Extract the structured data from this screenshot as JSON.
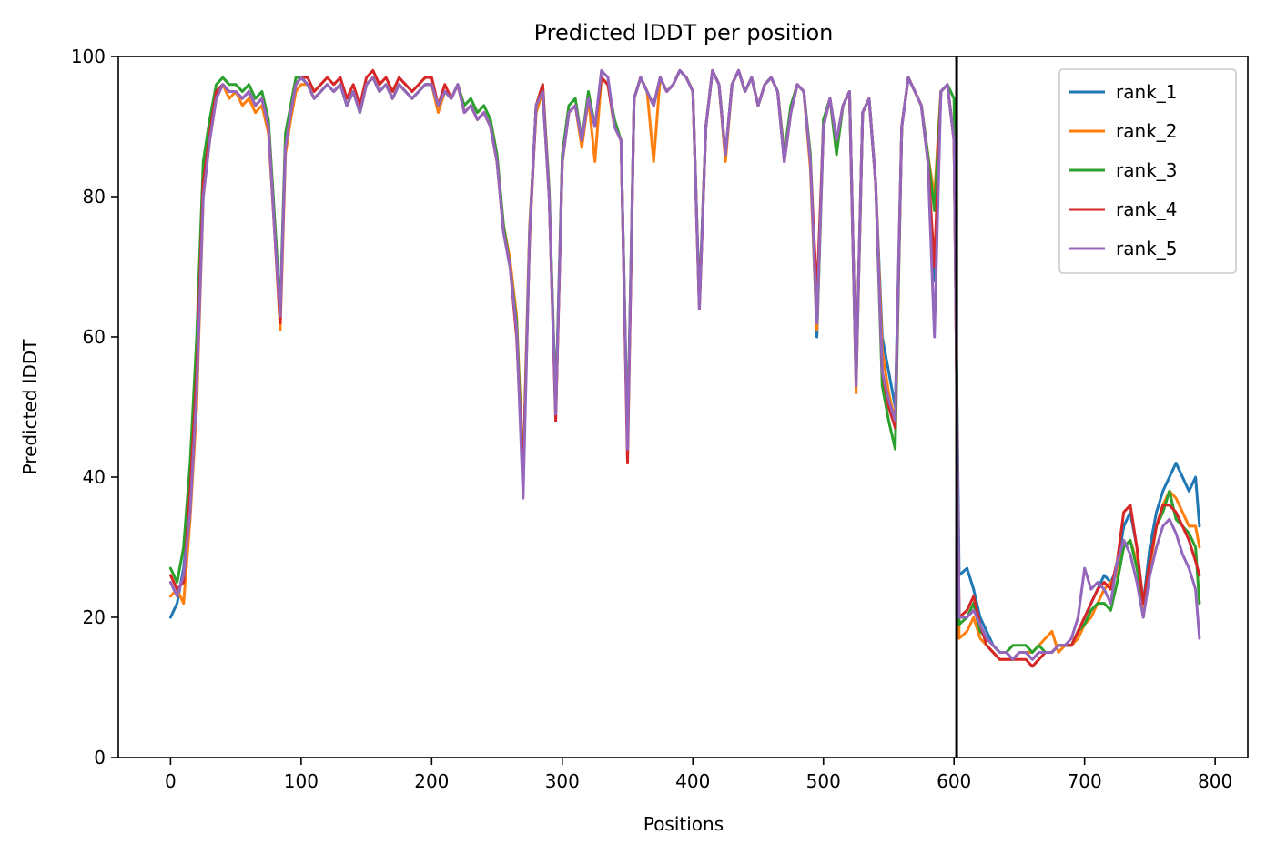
{
  "chart_data": {
    "type": "line",
    "title": "Predicted lDDT per position",
    "xlabel": "Positions",
    "ylabel": "Predicted lDDT",
    "xlim": [
      -40,
      825
    ],
    "ylim": [
      0,
      100
    ],
    "xticks": [
      0,
      100,
      200,
      300,
      400,
      500,
      600,
      700,
      800
    ],
    "yticks": [
      0,
      20,
      40,
      60,
      80,
      100
    ],
    "vline_x": 602,
    "legend_position": "top-right",
    "grid": false,
    "x": [
      0,
      5,
      10,
      15,
      20,
      25,
      30,
      35,
      40,
      45,
      50,
      55,
      60,
      65,
      70,
      75,
      80,
      84,
      88,
      92,
      96,
      100,
      105,
      110,
      115,
      120,
      125,
      130,
      135,
      140,
      145,
      150,
      155,
      160,
      165,
      170,
      175,
      180,
      185,
      190,
      195,
      200,
      205,
      210,
      215,
      220,
      225,
      230,
      235,
      240,
      245,
      250,
      255,
      260,
      265,
      270,
      275,
      280,
      285,
      290,
      295,
      300,
      305,
      310,
      315,
      320,
      325,
      330,
      335,
      340,
      345,
      350,
      355,
      360,
      365,
      370,
      375,
      380,
      385,
      390,
      395,
      400,
      405,
      410,
      415,
      420,
      425,
      430,
      435,
      440,
      445,
      450,
      455,
      460,
      465,
      470,
      475,
      480,
      485,
      490,
      495,
      500,
      505,
      510,
      515,
      520,
      525,
      530,
      535,
      540,
      545,
      550,
      555,
      560,
      565,
      570,
      575,
      580,
      585,
      590,
      595,
      600,
      604,
      610,
      615,
      620,
      625,
      630,
      635,
      640,
      645,
      650,
      655,
      660,
      665,
      670,
      675,
      680,
      685,
      690,
      695,
      700,
      705,
      710,
      715,
      720,
      725,
      730,
      735,
      740,
      745,
      750,
      755,
      760,
      765,
      770,
      775,
      780,
      785,
      788
    ],
    "series": [
      {
        "name": "rank_1",
        "color": "#1f77b4",
        "values": [
          20,
          22,
          27,
          36,
          55,
          82,
          90,
          95,
          96,
          95,
          95,
          94,
          95,
          93,
          94,
          90,
          75,
          64,
          88,
          92,
          96,
          97,
          96,
          94,
          95,
          96,
          95,
          96,
          93,
          95,
          92,
          96,
          97,
          95,
          96,
          94,
          96,
          95,
          94,
          95,
          96,
          96,
          93,
          95,
          94,
          96,
          92,
          93,
          91,
          92,
          90,
          85,
          75,
          70,
          62,
          40,
          75,
          93,
          95,
          80,
          50,
          85,
          92,
          93,
          88,
          94,
          90,
          97,
          96,
          90,
          88,
          45,
          94,
          97,
          95,
          93,
          97,
          95,
          96,
          98,
          97,
          95,
          65,
          90,
          98,
          96,
          86,
          96,
          98,
          95,
          97,
          93,
          96,
          97,
          95,
          85,
          92,
          96,
          95,
          85,
          60,
          90,
          94,
          88,
          93,
          95,
          53,
          92,
          94,
          82,
          60,
          55,
          50,
          90,
          97,
          95,
          93,
          85,
          68,
          95,
          96,
          88,
          26,
          27,
          24,
          20,
          18,
          16,
          15,
          15,
          14,
          15,
          15,
          14,
          15,
          15,
          15,
          16,
          16,
          16,
          18,
          20,
          22,
          24,
          26,
          25,
          27,
          33,
          35,
          30,
          22,
          30,
          35,
          38,
          40,
          42,
          40,
          38,
          40,
          33
        ]
      },
      {
        "name": "rank_2",
        "color": "#ff7f0e",
        "values": [
          23,
          24,
          22,
          34,
          50,
          80,
          88,
          94,
          96,
          94,
          95,
          93,
          94,
          92,
          93,
          89,
          74,
          61,
          86,
          91,
          95,
          96,
          96,
          94,
          95,
          96,
          95,
          96,
          93,
          95,
          92,
          96,
          97,
          95,
          96,
          94,
          96,
          95,
          94,
          95,
          96,
          96,
          92,
          95,
          94,
          96,
          92,
          93,
          91,
          92,
          90,
          85,
          76,
          71,
          63,
          41,
          76,
          92,
          95,
          80,
          49,
          85,
          92,
          93,
          87,
          94,
          85,
          97,
          96,
          90,
          88,
          44,
          94,
          97,
          95,
          85,
          97,
          95,
          96,
          98,
          97,
          95,
          64,
          90,
          98,
          96,
          85,
          96,
          98,
          95,
          97,
          93,
          96,
          97,
          95,
          86,
          92,
          96,
          95,
          84,
          61,
          90,
          94,
          87,
          93,
          95,
          52,
          92,
          94,
          82,
          58,
          52,
          48,
          90,
          97,
          95,
          93,
          86,
          80,
          95,
          96,
          88,
          17,
          18,
          20,
          17,
          16,
          15,
          14,
          14,
          14,
          15,
          15,
          15,
          16,
          17,
          18,
          15,
          16,
          16,
          17,
          19,
          20,
          22,
          24,
          25,
          26,
          30,
          31,
          28,
          20,
          27,
          33,
          36,
          38,
          37,
          35,
          33,
          33,
          30
        ]
      },
      {
        "name": "rank_3",
        "color": "#2ca02c",
        "values": [
          27,
          25,
          30,
          42,
          60,
          85,
          91,
          96,
          97,
          96,
          96,
          95,
          96,
          94,
          95,
          91,
          76,
          64,
          89,
          93,
          97,
          97,
          96,
          94,
          95,
          96,
          95,
          96,
          93,
          95,
          92,
          96,
          97,
          95,
          96,
          94,
          96,
          95,
          94,
          95,
          96,
          96,
          93,
          95,
          94,
          96,
          93,
          94,
          92,
          93,
          91,
          86,
          76,
          70,
          62,
          40,
          75,
          93,
          96,
          81,
          50,
          86,
          93,
          94,
          88,
          95,
          90,
          97,
          96,
          91,
          88,
          45,
          94,
          97,
          95,
          93,
          97,
          95,
          96,
          98,
          97,
          95,
          65,
          90,
          98,
          96,
          86,
          96,
          98,
          95,
          97,
          93,
          96,
          97,
          95,
          86,
          93,
          96,
          95,
          86,
          62,
          91,
          94,
          86,
          93,
          95,
          54,
          92,
          94,
          82,
          53,
          48,
          44,
          90,
          97,
          95,
          93,
          86,
          78,
          95,
          96,
          94,
          19,
          20,
          22,
          18,
          17,
          16,
          15,
          15,
          16,
          16,
          16,
          15,
          16,
          15,
          15,
          16,
          16,
          16,
          18,
          19,
          21,
          22,
          22,
          21,
          25,
          30,
          31,
          27,
          22,
          28,
          33,
          35,
          38,
          34,
          33,
          32,
          30,
          22
        ]
      },
      {
        "name": "rank_4",
        "color": "#d62728",
        "values": [
          26,
          24,
          25,
          38,
          55,
          82,
          89,
          95,
          96,
          95,
          95,
          94,
          95,
          93,
          94,
          90,
          74,
          62,
          87,
          92,
          96,
          97,
          97,
          95,
          96,
          97,
          96,
          97,
          94,
          96,
          93,
          97,
          98,
          96,
          97,
          95,
          97,
          96,
          95,
          96,
          97,
          97,
          93,
          96,
          94,
          96,
          92,
          93,
          91,
          92,
          90,
          85,
          75,
          70,
          60,
          40,
          74,
          93,
          96,
          80,
          48,
          85,
          92,
          93,
          88,
          94,
          90,
          97,
          96,
          90,
          88,
          42,
          94,
          97,
          95,
          93,
          97,
          95,
          96,
          98,
          97,
          95,
          64,
          90,
          98,
          96,
          86,
          96,
          98,
          95,
          97,
          93,
          96,
          97,
          95,
          85,
          92,
          96,
          95,
          85,
          66,
          90,
          94,
          88,
          93,
          95,
          54,
          92,
          94,
          82,
          55,
          50,
          47,
          90,
          97,
          95,
          93,
          85,
          70,
          95,
          96,
          88,
          20,
          21,
          23,
          19,
          16,
          15,
          14,
          14,
          14,
          14,
          14,
          13,
          14,
          15,
          15,
          16,
          16,
          16,
          18,
          20,
          22,
          24,
          25,
          24,
          28,
          35,
          36,
          30,
          22,
          28,
          33,
          36,
          36,
          35,
          33,
          31,
          28,
          26
        ]
      },
      {
        "name": "rank_5",
        "color": "#9467bd",
        "values": [
          25,
          23,
          26,
          35,
          52,
          80,
          88,
          94,
          96,
          95,
          95,
          94,
          95,
          93,
          94,
          90,
          74,
          63,
          87,
          92,
          96,
          97,
          96,
          94,
          95,
          96,
          95,
          96,
          93,
          95,
          92,
          96,
          97,
          95,
          96,
          94,
          96,
          95,
          94,
          95,
          96,
          96,
          93,
          95,
          94,
          96,
          92,
          93,
          91,
          92,
          90,
          85,
          75,
          70,
          61,
          37,
          75,
          93,
          95,
          80,
          49,
          85,
          92,
          93,
          88,
          94,
          90,
          98,
          97,
          90,
          88,
          44,
          94,
          97,
          95,
          93,
          97,
          95,
          96,
          98,
          97,
          95,
          64,
          90,
          98,
          96,
          86,
          96,
          98,
          95,
          97,
          93,
          96,
          97,
          95,
          85,
          92,
          96,
          95,
          85,
          62,
          90,
          94,
          88,
          93,
          95,
          53,
          92,
          94,
          82,
          55,
          51,
          48,
          90,
          97,
          95,
          93,
          85,
          60,
          95,
          96,
          88,
          20,
          20,
          21,
          19,
          17,
          16,
          15,
          15,
          14,
          15,
          15,
          14,
          15,
          15,
          15,
          16,
          16,
          17,
          20,
          27,
          24,
          25,
          24,
          22,
          28,
          31,
          29,
          25,
          20,
          26,
          30,
          33,
          34,
          32,
          29,
          27,
          24,
          17
        ]
      }
    ]
  }
}
